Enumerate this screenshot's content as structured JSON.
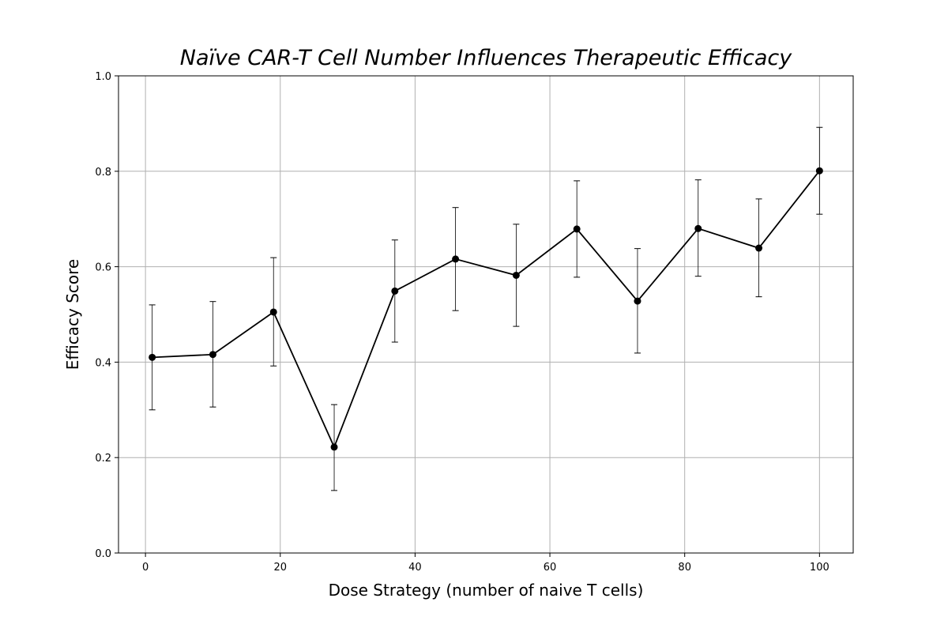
{
  "chart_data": {
    "type": "line",
    "title": "Naïve CAR-T Cell Number Influences Therapeutic Efficacy",
    "xlabel": "Dose Strategy (number of naive T cells)",
    "ylabel": "Efficacy Score",
    "xlim": [
      -4,
      105
    ],
    "ylim": [
      0.0,
      1.0
    ],
    "xticks": [
      0,
      20,
      40,
      60,
      80,
      100
    ],
    "xtick_labels": [
      "0",
      "20",
      "40",
      "60",
      "80",
      "100"
    ],
    "yticks": [
      0.0,
      0.2,
      0.4,
      0.6,
      0.8,
      1.0
    ],
    "ytick_labels": [
      "0.0",
      "0.2",
      "0.4",
      "0.6",
      "0.8",
      "1.0"
    ],
    "grid": true,
    "series": [
      {
        "color": "#000000",
        "marker": "circle",
        "x": [
          1,
          10,
          19,
          28,
          37,
          46,
          55,
          64,
          73,
          82,
          91,
          100
        ],
        "y": [
          0.41,
          0.416,
          0.505,
          0.222,
          0.549,
          0.616,
          0.582,
          0.679,
          0.528,
          0.68,
          0.639,
          0.801
        ],
        "error_low": [
          0.3,
          0.306,
          0.392,
          0.131,
          0.442,
          0.508,
          0.475,
          0.578,
          0.419,
          0.58,
          0.537,
          0.71
        ],
        "error_high": [
          0.52,
          0.527,
          0.619,
          0.311,
          0.656,
          0.724,
          0.689,
          0.78,
          0.638,
          0.782,
          0.742,
          0.892
        ]
      }
    ]
  }
}
